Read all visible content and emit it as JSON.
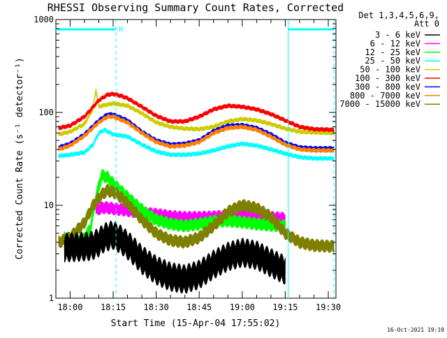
{
  "chart_data": {
    "type": "line",
    "title": "RHESSI Observing Summary Count Rates, Corrected",
    "xlabel": "Start Time (15-Apr-04 17:55:02)",
    "ylabel": "Corrected Count Rate (s⁻¹ detector⁻¹)",
    "y_scale": "log",
    "ylim": [
      1,
      1000
    ],
    "xlim": [
      "17:55:02",
      "19:32:40"
    ],
    "x_ticks": [
      "18:00",
      "18:15",
      "18:30",
      "18:45",
      "19:00",
      "19:15",
      "19:30"
    ],
    "y_ticks": [
      "1",
      "10",
      "100",
      "1000"
    ],
    "grid": false,
    "legend_position": "top-right",
    "legend_header": [
      "Det 1,3,4,5,6,9,",
      "Att 0"
    ],
    "footer_date": "16-Oct-2021 19:19",
    "annotations": [
      {
        "text": "N",
        "x": "18:16"
      },
      {
        "type": "night-marker-line",
        "segments": [
          [
            "17:55",
            "18:16"
          ],
          [
            "19:16",
            "19:32"
          ]
        ]
      },
      {
        "type": "vertical-dashed-line",
        "x": "18:16"
      },
      {
        "type": "vertical-line",
        "x": "19:16"
      },
      {
        "type": "vertical-dashed-line",
        "x": "19:32"
      }
    ],
    "series": [
      {
        "name": "3 - 6 keV",
        "color": "#000000",
        "x": [
          "17:58",
          "18:06",
          "18:08",
          "18:10",
          "18:12",
          "18:15",
          "18:18",
          "18:21",
          "18:25",
          "18:30",
          "18:35",
          "18:40",
          "18:45",
          "18:50",
          "18:55",
          "19:00",
          "19:05",
          "19:10",
          "19:15"
        ],
        "values": [
          3.5,
          3.6,
          3.7,
          4.0,
          4.5,
          4.8,
          4.2,
          3.5,
          2.6,
          2.0,
          1.7,
          1.6,
          1.8,
          2.3,
          2.8,
          3.1,
          2.9,
          2.4,
          2.0
        ]
      },
      {
        "name": "6 - 12 keV",
        "color": "#ff00ff",
        "x": [
          "18:09",
          "18:12",
          "18:15",
          "18:20",
          "18:25",
          "18:30",
          "18:35",
          "18:40",
          "18:45",
          "18:50",
          "18:55",
          "19:00",
          "19:05",
          "19:10",
          "19:15"
        ],
        "values": [
          9.0,
          9.5,
          9.2,
          8.8,
          8.3,
          8.0,
          7.6,
          7.4,
          7.4,
          7.5,
          7.7,
          7.8,
          7.6,
          7.4,
          7.2
        ]
      },
      {
        "name": "12 - 25 keV",
        "color": "#00ff00",
        "x": [
          "17:58",
          "18:04",
          "18:07",
          "18:09",
          "18:11",
          "18:13",
          "18:15",
          "18:18",
          "18:21",
          "18:24",
          "18:27",
          "18:30",
          "18:35",
          "18:40",
          "18:45",
          "18:50",
          "18:55",
          "19:00",
          "19:05",
          "19:10",
          "19:15"
        ],
        "values": [
          4.5,
          4.0,
          5.5,
          12.0,
          21.0,
          20.0,
          17.0,
          14.0,
          11.5,
          9.5,
          8.0,
          7.0,
          6.3,
          6.0,
          6.3,
          6.7,
          6.8,
          6.6,
          6.3,
          6.1,
          6.0
        ]
      },
      {
        "name": "25 - 50 keV",
        "color": "#00ffff",
        "x": [
          "17:56",
          "18:00",
          "18:05",
          "18:08",
          "18:10",
          "18:12",
          "18:15",
          "18:20",
          "18:25",
          "18:30",
          "18:35",
          "18:40",
          "18:45",
          "18:50",
          "18:55",
          "19:00",
          "19:05",
          "19:10",
          "19:15",
          "19:20",
          "19:25",
          "19:32"
        ],
        "values": [
          34,
          35,
          37,
          45,
          60,
          65,
          58,
          55,
          45,
          38,
          35,
          35,
          36,
          39,
          43,
          46,
          44,
          40,
          36,
          33,
          32,
          32
        ]
      },
      {
        "name": "50 - 100 keV",
        "color": "#cccc00",
        "x": [
          "17:56",
          "18:00",
          "18:05",
          "18:08",
          "18:09",
          "18:10",
          "18:11",
          "18:15",
          "18:20",
          "18:25",
          "18:30",
          "18:35",
          "18:40",
          "18:45",
          "18:50",
          "18:55",
          "19:00",
          "19:05",
          "19:10",
          "19:15",
          "19:20",
          "19:25",
          "19:32"
        ],
        "values": [
          58,
          62,
          75,
          110,
          175,
          115,
          118,
          125,
          118,
          98,
          78,
          70,
          67,
          66,
          70,
          80,
          85,
          82,
          75,
          67,
          62,
          61,
          60
        ]
      },
      {
        "name": "100 - 300 keV",
        "color": "#ff0000",
        "x": [
          "17:56",
          "18:00",
          "18:05",
          "18:10",
          "18:13",
          "18:15",
          "18:18",
          "18:20",
          "18:25",
          "18:30",
          "18:35",
          "18:40",
          "18:45",
          "18:50",
          "18:55",
          "19:00",
          "19:05",
          "19:10",
          "19:15",
          "19:20",
          "19:25",
          "19:32"
        ],
        "values": [
          68,
          72,
          90,
          135,
          155,
          158,
          150,
          142,
          115,
          92,
          80,
          80,
          90,
          108,
          118,
          115,
          108,
          96,
          82,
          70,
          66,
          65
        ]
      },
      {
        "name": "300 - 800 keV",
        "color": "#0000ff",
        "x": [
          "17:56",
          "18:00",
          "18:05",
          "18:10",
          "18:13",
          "18:15",
          "18:20",
          "18:25",
          "18:30",
          "18:35",
          "18:40",
          "18:45",
          "18:50",
          "18:55",
          "19:00",
          "19:05",
          "19:10",
          "19:15",
          "19:20",
          "19:25",
          "19:32"
        ],
        "values": [
          42,
          46,
          58,
          82,
          95,
          95,
          82,
          62,
          50,
          45,
          46,
          50,
          63,
          72,
          73,
          68,
          58,
          47,
          42,
          41,
          41
        ]
      },
      {
        "name": "800 - 7000 keV",
        "color": "#ff8000",
        "x": [
          "17:56",
          "18:00",
          "18:05",
          "18:10",
          "18:13",
          "18:15",
          "18:20",
          "18:25",
          "18:30",
          "18:35",
          "18:40",
          "18:45",
          "18:50",
          "18:55",
          "19:00",
          "19:05",
          "19:10",
          "19:15",
          "19:20",
          "19:25",
          "19:32"
        ],
        "values": [
          40,
          44,
          56,
          78,
          90,
          90,
          78,
          60,
          48,
          43,
          44,
          48,
          60,
          68,
          70,
          65,
          55,
          45,
          40,
          39,
          39
        ]
      },
      {
        "name": "7000 - 15000 keV",
        "color": "#808000",
        "x": [
          "17:56",
          "18:00",
          "18:05",
          "18:08",
          "18:11",
          "18:13",
          "18:16",
          "18:20",
          "18:25",
          "18:30",
          "18:35",
          "18:40",
          "18:45",
          "18:50",
          "18:55",
          "19:00",
          "19:05",
          "19:10",
          "19:15",
          "19:20",
          "19:25",
          "19:32"
        ],
        "values": [
          4.0,
          4.5,
          6.5,
          10.0,
          13.0,
          14.5,
          13.5,
          10.5,
          7.0,
          5.0,
          4.2,
          4.0,
          4.5,
          6.0,
          8.5,
          10.0,
          9.3,
          7.5,
          5.0,
          4.0,
          3.7,
          3.6
        ]
      }
    ]
  }
}
